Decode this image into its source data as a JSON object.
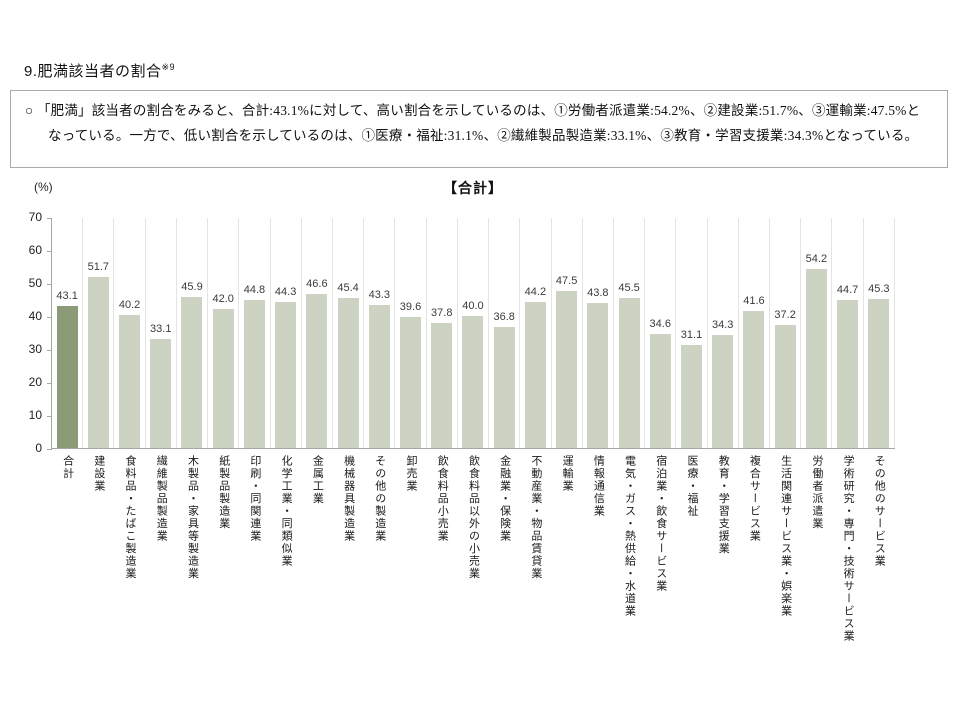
{
  "page": {
    "title": "9.肥満該当者の割合",
    "title_footnote": "※9",
    "summary_bullet": "○",
    "summary_text": "「肥満」該当者の割合をみると、合計:43.1%に対して、高い割合を示しているのは、①労働者派遣業:54.2%、②建設業:51.7%、③運輸業:47.5%となっている。一方で、低い割合を示しているのは、①医療・福祉:31.1%、②繊維製品製造業:33.1%、③教育・学習支援業:34.3%となっている。"
  },
  "chart_data": {
    "type": "bar",
    "title": "【合計】",
    "unit_label": "(%)",
    "ylim": [
      0,
      70
    ],
    "yticks": [
      0,
      10,
      20,
      30,
      40,
      50,
      60,
      70
    ],
    "grid": "vertical-category-separators",
    "legend": "none",
    "highlight_index": 0,
    "categories": [
      "合計",
      "建設業",
      "食料品・たばこ製造業",
      "繊維製品製造業",
      "木製品・家具等製造業",
      "紙製品製造業",
      "印刷・同関連業",
      "化学工業・同類似業",
      "金属工業",
      "機械器具製造業",
      "その他の製造業",
      "卸売業",
      "飲食料品小売業",
      "飲食料品以外の小売業",
      "金融業・保険業",
      "不動産業・物品賃貸業",
      "運輸業",
      "情報通信業",
      "電気・ガス・熱供給・水道業",
      "宿泊業・飲食サービス業",
      "医療・福祉",
      "教育・学習支援業",
      "複合サービス業",
      "生活関連サービス業・娯楽業",
      "労働者派遣業",
      "学術研究・専門・技術サービス業",
      "その他のサービス業"
    ],
    "values": [
      43.1,
      51.7,
      40.2,
      33.1,
      45.9,
      42.0,
      44.8,
      44.3,
      46.6,
      45.4,
      43.3,
      39.6,
      37.8,
      40.0,
      36.8,
      44.2,
      47.5,
      43.8,
      45.5,
      34.6,
      31.1,
      34.3,
      41.6,
      37.2,
      54.2,
      44.7,
      45.3
    ],
    "value_labels": [
      "43.1",
      "51.7",
      "40.2",
      "33.1",
      "45.9",
      "42.0",
      "44.8",
      "44.3",
      "46.6",
      "45.4",
      "43.3",
      "39.6",
      "37.8",
      "40.0",
      "36.8",
      "44.2",
      "47.5",
      "43.8",
      "45.5",
      "34.6",
      "31.1",
      "34.3",
      "41.6",
      "37.2",
      "54.2",
      "44.7",
      "45.3"
    ],
    "colors": {
      "total_bar": "#8b9a77",
      "bar": "#ccd3c2",
      "separator": "#e4e4e1",
      "axis": "#a6a6a6"
    }
  }
}
